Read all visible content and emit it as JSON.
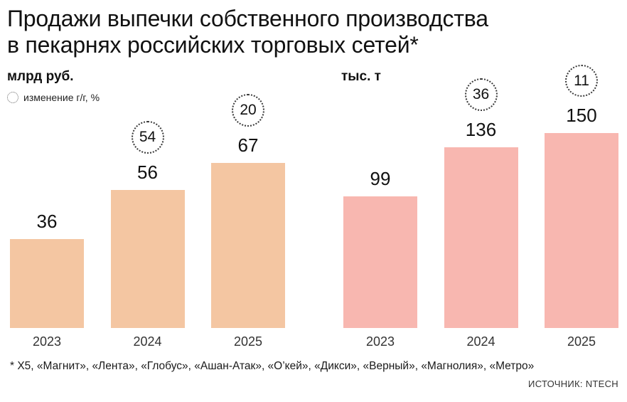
{
  "title": {
    "line1": "Продажи выпечки собственного производства",
    "line2": "в пекарнях российских торговых сетей*"
  },
  "legend": {
    "label": "изменение г/г, %"
  },
  "chart_data": [
    {
      "type": "bar",
      "unit": "млрд руб.",
      "categories": [
        "2023",
        "2024",
        "2025"
      ],
      "values": [
        36,
        56,
        67
      ],
      "yoy_change_pct": [
        null,
        54,
        20
      ],
      "bar_color": "#f4c6a2",
      "ylim": [
        0,
        70
      ],
      "grid": false,
      "legend_position": "top-left"
    },
    {
      "type": "bar",
      "unit": "тыс. т",
      "categories": [
        "2023",
        "2024",
        "2025"
      ],
      "values": [
        99,
        136,
        150
      ],
      "yoy_change_pct": [
        null,
        36,
        11
      ],
      "bar_color": "#f8b7b0",
      "ylim": [
        0,
        155
      ],
      "grid": false,
      "legend_position": "none"
    }
  ],
  "footnote": "* X5, «Магнит», «Лента», «Глобус», «Ашан-Атак», «О’кей», «Дикси», «Верный», «Магнолия», «Метро»",
  "source": "ИСТОЧНИК: NTECH"
}
